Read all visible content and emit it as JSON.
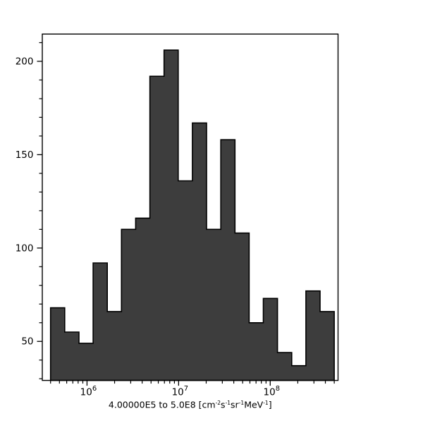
{
  "figure": {
    "background": "#ffffff"
  },
  "chart": {
    "bar_fill": "#3d3d3d",
    "bar_stroke": "#000000",
    "axis_color": "#000000",
    "tick_label_color": "#000000"
  },
  "chart_data": {
    "type": "bar",
    "subtype": "histogram",
    "title": "",
    "ylabel": "",
    "x_scale": "log",
    "grid": false,
    "legend": false,
    "bin_start": 400000,
    "bin_end": 500000000,
    "bins": 20,
    "values": [
      68,
      55,
      49,
      92,
      66,
      110,
      116,
      192,
      206,
      136,
      167,
      110,
      158,
      108,
      60,
      73,
      44,
      37,
      77,
      66
    ],
    "xlim": [
      325000,
      550000000
    ],
    "ylim": [
      29.1,
      214.6
    ],
    "y_major_ticks": [
      50,
      100,
      150,
      200
    ],
    "y_minor_tick_step": 10,
    "x_major_ticks": [
      {
        "value": 1000000,
        "base": "10",
        "exponent": "6"
      },
      {
        "value": 10000000,
        "base": "10",
        "exponent": "7"
      },
      {
        "value": 100000000,
        "base": "10",
        "exponent": "8"
      }
    ],
    "xlabel_segments": [
      {
        "text": "4.00000E5 to 5.0E8 [cm"
      },
      {
        "text": "-2",
        "sup": true
      },
      {
        "text": "s"
      },
      {
        "text": "-1",
        "sup": true
      },
      {
        "text": "sr"
      },
      {
        "text": "-1",
        "sup": true
      },
      {
        "text": "MeV"
      },
      {
        "text": "-1",
        "sup": true
      },
      {
        "text": "]"
      }
    ],
    "xlabel_text": "4.00000E5 to 5.0E8 [cm-2 s-1 sr-1 MeV-1]"
  }
}
